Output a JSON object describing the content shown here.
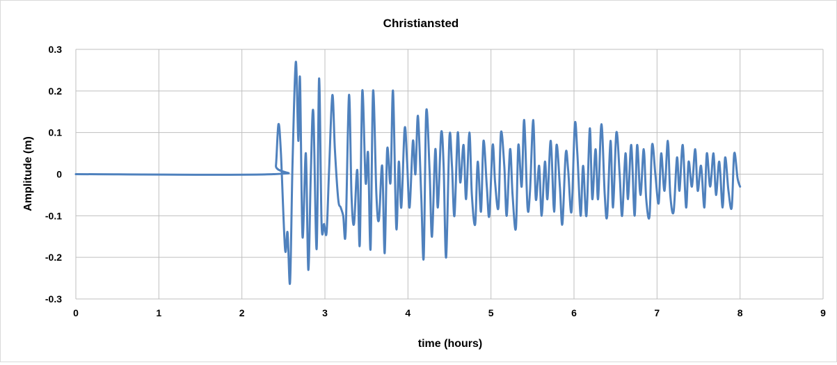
{
  "chart_data": {
    "type": "line",
    "title": "Christiansted",
    "xlabel": "time (hours)",
    "ylabel": "Amplitude (m)",
    "xlim": [
      0,
      9
    ],
    "ylim": [
      -0.3,
      0.3
    ],
    "x_ticks": [
      0,
      1,
      2,
      3,
      4,
      5,
      6,
      7,
      8,
      9
    ],
    "y_ticks": [
      -0.3,
      -0.2,
      -0.1,
      0,
      0.1,
      0.2,
      0.3
    ],
    "y_tick_labels": [
      "-0.3",
      "-0.2",
      "-0.1",
      "0",
      "0.1",
      "0.2",
      "0.3"
    ],
    "grid": true,
    "legend": "none",
    "line_color": "#4f81bd",
    "series": [
      {
        "x": [
          0,
          2.38,
          2.41,
          2.44,
          2.47,
          2.52,
          2.55,
          2.58,
          2.61,
          2.65,
          2.68,
          2.7,
          2.73,
          2.77,
          2.8,
          2.83,
          2.86,
          2.9,
          2.93,
          2.96,
          2.99,
          3.02,
          3.05,
          3.09,
          3.12,
          3.16,
          3.19,
          3.22,
          3.25,
          3.29,
          3.32,
          3.35,
          3.39,
          3.42,
          3.45,
          3.49,
          3.52,
          3.55,
          3.58,
          3.62,
          3.65,
          3.69,
          3.72,
          3.75,
          3.79,
          3.82,
          3.86,
          3.89,
          3.92,
          3.96,
          3.99,
          4.02,
          4.06,
          4.09,
          4.12,
          4.16,
          4.19,
          4.22,
          4.26,
          4.29,
          4.33,
          4.36,
          4.4,
          4.43,
          4.46,
          4.5,
          4.53,
          4.56,
          4.6,
          4.63,
          4.67,
          4.7,
          4.74,
          4.77,
          4.81,
          4.84,
          4.88,
          4.91,
          4.95,
          4.98,
          5.02,
          5.05,
          5.09,
          5.12,
          5.16,
          5.19,
          5.23,
          5.26,
          5.3,
          5.33,
          5.37,
          5.4,
          5.44,
          5.47,
          5.51,
          5.54,
          5.58,
          5.61,
          5.65,
          5.68,
          5.72,
          5.76,
          5.79,
          5.83,
          5.86,
          5.9,
          5.93,
          5.97,
          6.01,
          6.04,
          6.08,
          6.11,
          6.15,
          6.19,
          6.22,
          6.26,
          6.29,
          6.33,
          6.37,
          6.4,
          6.44,
          6.47,
          6.51,
          6.55,
          6.58,
          6.62,
          6.65,
          6.69,
          6.73,
          6.76,
          6.8,
          6.84,
          6.87,
          6.91,
          6.94,
          6.98,
          7.02,
          7.05,
          7.09,
          7.13,
          7.16,
          7.2,
          7.24,
          7.27,
          7.31,
          7.35,
          7.38,
          7.42,
          7.46,
          7.49,
          7.53,
          7.57,
          7.6,
          7.64,
          7.68,
          7.71,
          7.75,
          7.79,
          7.82,
          7.86,
          7.9,
          7.93,
          7.97,
          8.0
        ],
        "y": [
          0,
          0,
          0.02,
          0.12,
          0.05,
          -0.18,
          -0.14,
          -0.26,
          0.03,
          0.27,
          0.08,
          0.23,
          -0.15,
          0.05,
          -0.23,
          0.0,
          0.15,
          -0.18,
          0.23,
          -0.12,
          -0.12,
          -0.14,
          0.01,
          0.19,
          0.06,
          -0.06,
          -0.08,
          -0.1,
          -0.14,
          0.19,
          -0.05,
          -0.12,
          0.01,
          -0.17,
          0.2,
          -0.02,
          0.05,
          -0.18,
          0.2,
          -0.05,
          -0.11,
          0.02,
          -0.19,
          0.06,
          -0.02,
          0.2,
          -0.13,
          0.03,
          -0.08,
          0.11,
          0.03,
          -0.08,
          0.08,
          0.0,
          0.14,
          -0.05,
          -0.2,
          0.15,
          0.01,
          -0.15,
          0.06,
          -0.08,
          0.1,
          0.02,
          -0.2,
          0.09,
          0.02,
          -0.1,
          0.1,
          -0.02,
          0.07,
          -0.06,
          0.1,
          -0.05,
          -0.12,
          0.03,
          -0.09,
          0.08,
          -0.03,
          -0.1,
          0.07,
          -0.02,
          -0.08,
          0.1,
          0.02,
          -0.1,
          0.06,
          -0.05,
          -0.13,
          0.07,
          -0.03,
          0.13,
          -0.08,
          -0.04,
          0.13,
          -0.06,
          0.02,
          -0.1,
          0.03,
          -0.06,
          0.08,
          -0.09,
          0.07,
          -0.03,
          -0.12,
          0.05,
          0.01,
          -0.09,
          0.12,
          0.05,
          -0.1,
          0.02,
          -0.1,
          0.11,
          -0.06,
          0.06,
          -0.06,
          0.12,
          -0.05,
          -0.1,
          0.08,
          -0.08,
          0.1,
          0.0,
          -0.1,
          0.05,
          -0.06,
          0.07,
          -0.1,
          0.07,
          -0.05,
          0.06,
          -0.06,
          -0.1,
          0.07,
          0.0,
          -0.07,
          0.05,
          -0.04,
          0.08,
          -0.05,
          -0.09,
          0.04,
          -0.04,
          0.07,
          -0.08,
          0.03,
          -0.03,
          0.06,
          -0.04,
          0.02,
          -0.08,
          0.05,
          -0.03,
          0.05,
          -0.05,
          0.03,
          -0.08,
          0.04,
          -0.04,
          -0.08,
          0.05,
          -0.01,
          -0.03
        ]
      }
    ]
  }
}
